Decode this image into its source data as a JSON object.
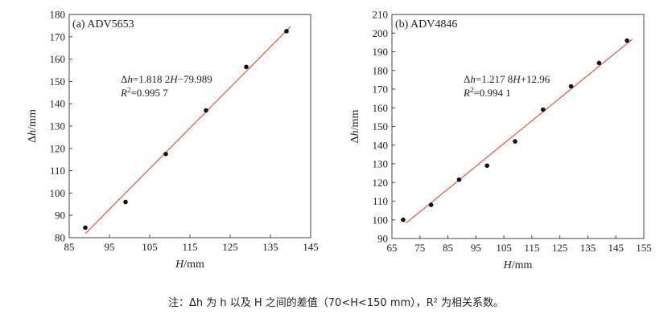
{
  "caption": "注：Δh 为 h 以及 H 之间的差值（70<H<150 mm），R² 为相关系数。",
  "chart_data": [
    {
      "type": "scatter",
      "title": "(a) ADV5653",
      "xlabel": "H/mm",
      "ylabel": "Δh/mm",
      "xlim": [
        85,
        145
      ],
      "ylim": [
        80,
        180
      ],
      "xticks": [
        85,
        95,
        105,
        115,
        125,
        135,
        145
      ],
      "yticks": [
        80,
        90,
        100,
        110,
        120,
        130,
        140,
        150,
        160,
        170,
        180
      ],
      "grid": false,
      "colors": {
        "points": "#111111",
        "fit": "#e0605a"
      },
      "series": [
        {
          "points": [
            {
              "x": 89,
              "y": 84.5
            },
            {
              "x": 99,
              "y": 96
            },
            {
              "x": 109,
              "y": 117.5
            },
            {
              "x": 119,
              "y": 137
            },
            {
              "x": 129,
              "y": 156.5
            },
            {
              "x": 139,
              "y": 172.5
            }
          ]
        }
      ],
      "fit": {
        "slope": 1.8182,
        "intercept": -79.989,
        "x_range": [
          89,
          140
        ]
      },
      "annotations": [
        "Δh=1.818 2H−79.989",
        "R²=0.995 7"
      ]
    },
    {
      "type": "scatter",
      "title": "(b) ADV4846",
      "xlabel": "H/mm",
      "ylabel": "Δh/mm",
      "xlim": [
        65,
        155
      ],
      "ylim": [
        90,
        210
      ],
      "xticks": [
        65,
        75,
        85,
        95,
        105,
        115,
        125,
        135,
        145,
        155
      ],
      "yticks": [
        90,
        100,
        110,
        120,
        130,
        140,
        150,
        160,
        170,
        180,
        190,
        200,
        210
      ],
      "grid": false,
      "colors": {
        "points": "#111111",
        "fit": "#e0605a"
      },
      "series": [
        {
          "points": [
            {
              "x": 69,
              "y": 100
            },
            {
              "x": 79,
              "y": 108
            },
            {
              "x": 89,
              "y": 121.5
            },
            {
              "x": 99,
              "y": 129
            },
            {
              "x": 109,
              "y": 142
            },
            {
              "x": 119,
              "y": 159
            },
            {
              "x": 129,
              "y": 171.5
            },
            {
              "x": 139,
              "y": 184
            },
            {
              "x": 149,
              "y": 196
            }
          ]
        }
      ],
      "fit": {
        "slope": 1.2178,
        "intercept": 12.96,
        "x_range": [
          70,
          151
        ]
      },
      "annotations": [
        "Δh=1.217 8H+12.96",
        "R²=0.994 1"
      ]
    }
  ]
}
